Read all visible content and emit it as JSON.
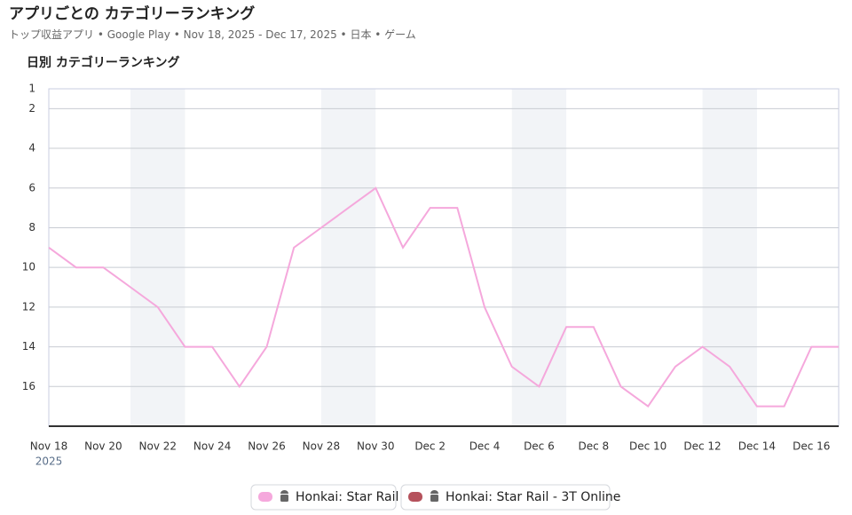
{
  "header": {
    "title": "アプリごとの カテゴリーランキング",
    "subtitle": [
      "トップ収益アプリ",
      "Google Play",
      "Nov 18, 2025 - Dec 17, 2025",
      "日本",
      "ゲーム"
    ]
  },
  "chart_data": {
    "type": "line",
    "title": "日別 カテゴリーランキング",
    "categories": [
      "Nov 18",
      null,
      "Nov 20",
      null,
      "Nov 22",
      null,
      "Nov 24",
      null,
      "Nov 26",
      null,
      "Nov 28",
      null,
      "Nov 30",
      null,
      "Dec 2",
      null,
      "Dec 4",
      null,
      "Dec 6",
      null,
      "Dec 8",
      null,
      "Dec 10",
      null,
      "Dec 12",
      null,
      "Dec 14",
      null,
      "Dec 16",
      null
    ],
    "x_year_label": "2025",
    "ylim": [
      1,
      18
    ],
    "y_inverted": true,
    "yticks": [
      1,
      2,
      4,
      6,
      8,
      10,
      12,
      14,
      16
    ],
    "grid": true,
    "series": [
      {
        "name": "Honkai: Star Rail",
        "color": "#f5a8dc",
        "values": [
          9,
          10,
          10,
          11,
          12,
          14,
          14,
          16,
          14,
          9,
          8,
          7,
          6,
          9,
          7,
          7,
          12,
          15,
          16,
          13,
          13,
          16,
          17,
          15,
          14,
          15,
          17,
          17,
          14,
          14
        ]
      },
      {
        "name": "Honkai: Star Rail - 3T Online",
        "color": "#b5525c",
        "values": [
          null,
          null,
          null,
          null,
          null,
          null,
          null,
          null,
          null,
          null,
          null,
          null,
          null,
          null,
          null,
          null,
          null,
          null,
          null,
          null,
          null,
          null,
          null,
          null,
          null,
          null,
          null,
          null,
          null,
          null
        ]
      }
    ]
  }
}
